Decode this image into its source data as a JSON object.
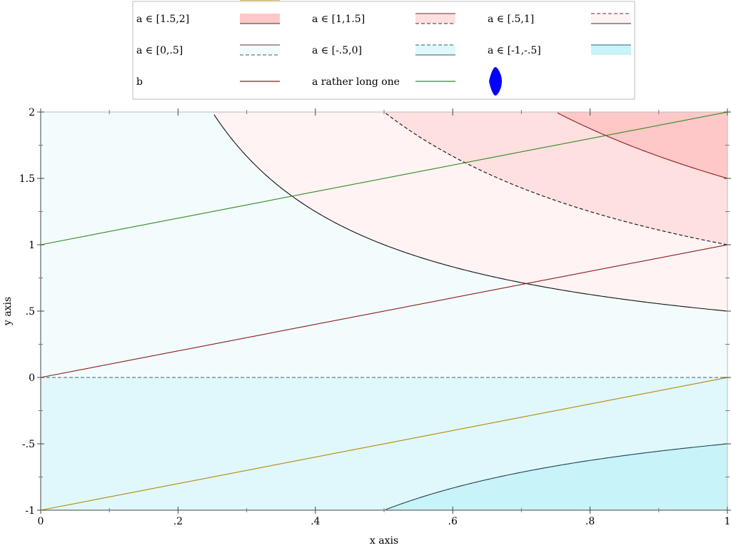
{
  "chart_data": {
    "type": "line",
    "xlabel": "x axis",
    "ylabel": "y axis",
    "xlim": [
      0,
      1
    ],
    "ylim": [
      -1,
      2
    ],
    "x_ticks": [
      {
        "v": 0,
        "label": "0"
      },
      {
        "v": 0.2,
        "label": ".2"
      },
      {
        "v": 0.4,
        "label": ".4"
      },
      {
        "v": 0.6,
        "label": ".6"
      },
      {
        "v": 0.8,
        "label": ".8"
      },
      {
        "v": 1,
        "label": "1"
      }
    ],
    "y_ticks": [
      {
        "v": -1,
        "label": "-1"
      },
      {
        "v": -0.5,
        "label": "-.5"
      },
      {
        "v": 0,
        "label": "0"
      },
      {
        "v": 0.5,
        "label": ".5"
      },
      {
        "v": 1,
        "label": "1"
      },
      {
        "v": 1.5,
        "label": "1.5"
      },
      {
        "v": 2,
        "label": "2"
      }
    ],
    "legend_position": "top",
    "bands": [
      {
        "name": "a ∈ [1.5,2]",
        "lower_a": 1.5,
        "upper_a": 2,
        "color": "#ffc8c8",
        "lower_style": "solid",
        "upper_style": "none"
      },
      {
        "name": "a ∈ [1,1.5]",
        "lower_a": 1,
        "upper_a": 1.5,
        "color": "#ffe0e0",
        "lower_style": "dashed",
        "upper_style": "solid"
      },
      {
        "name": "a ∈ [.5,1]",
        "lower_a": 0.5,
        "upper_a": 1,
        "color": "#fff3f3",
        "lower_style": "solid",
        "upper_style": "dashed"
      },
      {
        "name": "a ∈ [0,.5]",
        "lower_a": 0,
        "upper_a": 0.5,
        "color": "#f3fcfd",
        "lower_style": "dashed",
        "upper_style": "solid"
      },
      {
        "name": "a ∈ [-.5,0]",
        "lower_a": -0.5,
        "upper_a": 0,
        "color": "#e0f8fb",
        "lower_style": "solid",
        "upper_style": "dashed"
      },
      {
        "name": "a ∈ [-1,-.5]",
        "lower_a": -1,
        "upper_a": -0.5,
        "color": "#c8f3f8",
        "lower_style": "none",
        "upper_style": "solid"
      }
    ],
    "band_formula": "y = a / x",
    "series": [
      {
        "name": "b",
        "color": "#8b1a1a",
        "x": [
          0,
          1
        ],
        "y": [
          0,
          1
        ]
      },
      {
        "name": "a rather long one",
        "color": "#2e8b1e",
        "x": [
          0,
          1
        ],
        "y": [
          1,
          2
        ]
      },
      {
        "name": "",
        "color": "#b8860b",
        "x": [
          0,
          1
        ],
        "y": [
          -1,
          0
        ]
      }
    ],
    "legend_icon_color": "#0000ff"
  }
}
